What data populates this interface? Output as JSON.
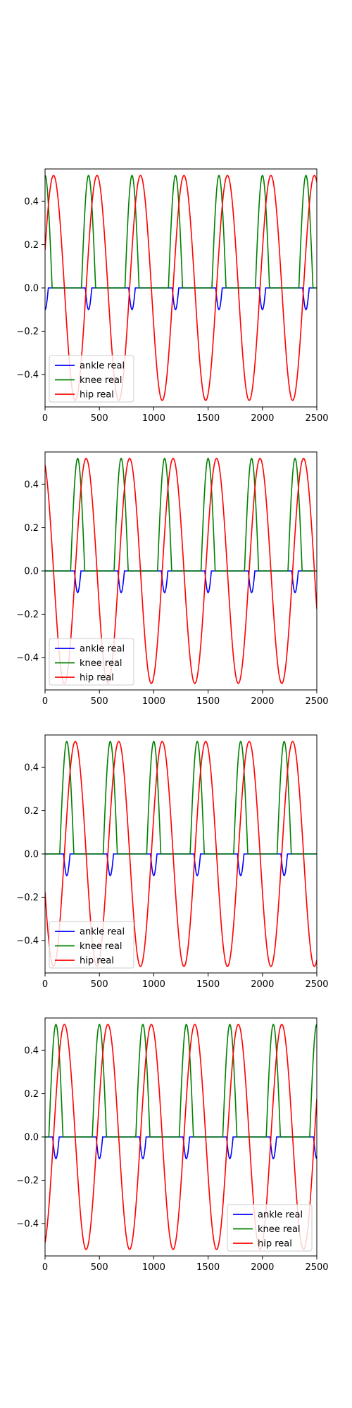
{
  "chart_data": [
    {
      "type": "line",
      "xlim": [
        0,
        2500
      ],
      "ylim": [
        -0.55,
        0.55
      ],
      "xticks": [
        0,
        500,
        1000,
        1500,
        2000,
        2500
      ],
      "yticks": [
        -0.4,
        -0.2,
        0.0,
        0.2,
        0.4
      ],
      "xtick_labels": [
        "0",
        "500",
        "1000",
        "1500",
        "2000",
        "2500"
      ],
      "ytick_labels": [
        "−0.4",
        "−0.2",
        "0.0",
        "0.2",
        "0.4"
      ],
      "grid": false,
      "legend_position": "lower-left",
      "series": [
        {
          "name": "ankle real",
          "color": "#0000ff",
          "phase": 0
        },
        {
          "name": "knee real",
          "color": "#008000",
          "phase": 0
        },
        {
          "name": "hip real",
          "color": "#ff0000",
          "phase": 0
        }
      ]
    },
    {
      "type": "line",
      "xlim": [
        0,
        2500
      ],
      "ylim": [
        -0.55,
        0.55
      ],
      "xticks": [
        0,
        500,
        1000,
        1500,
        2000,
        2500
      ],
      "yticks": [
        -0.4,
        -0.2,
        0.0,
        0.2,
        0.4
      ],
      "xtick_labels": [
        "0",
        "500",
        "1000",
        "1500",
        "2000",
        "2500"
      ],
      "ytick_labels": [
        "−0.4",
        "−0.2",
        "0.0",
        "0.2",
        "0.4"
      ],
      "grid": false,
      "legend_position": "lower-left",
      "series": [
        {
          "name": "ankle real",
          "color": "#0000ff",
          "phase": 100
        },
        {
          "name": "knee real",
          "color": "#008000",
          "phase": 100
        },
        {
          "name": "hip real",
          "color": "#ff0000",
          "phase": 100
        }
      ]
    },
    {
      "type": "line",
      "xlim": [
        0,
        2500
      ],
      "ylim": [
        -0.55,
        0.55
      ],
      "xticks": [
        0,
        500,
        1000,
        1500,
        2000,
        2500
      ],
      "yticks": [
        -0.4,
        -0.2,
        0.0,
        0.2,
        0.4
      ],
      "xtick_labels": [
        "0",
        "500",
        "1000",
        "1500",
        "2000",
        "2500"
      ],
      "ytick_labels": [
        "−0.4",
        "−0.2",
        "0.0",
        "0.2",
        "0.4"
      ],
      "grid": false,
      "legend_position": "lower-left",
      "series": [
        {
          "name": "ankle real",
          "color": "#0000ff",
          "phase": 200
        },
        {
          "name": "knee real",
          "color": "#008000",
          "phase": 200
        },
        {
          "name": "hip real",
          "color": "#ff0000",
          "phase": 200
        }
      ]
    },
    {
      "type": "line",
      "xlim": [
        0,
        2500
      ],
      "ylim": [
        -0.55,
        0.55
      ],
      "xticks": [
        0,
        500,
        1000,
        1500,
        2000,
        2500
      ],
      "yticks": [
        -0.4,
        -0.2,
        0.0,
        0.2,
        0.4
      ],
      "xtick_labels": [
        "0",
        "500",
        "1000",
        "1500",
        "2000",
        "2500"
      ],
      "ytick_labels": [
        "−0.4",
        "−0.2",
        "0.0",
        "0.2",
        "0.4"
      ],
      "grid": false,
      "legend_position": "lower-right",
      "series": [
        {
          "name": "ankle real",
          "color": "#0000ff",
          "phase": 300
        },
        {
          "name": "knee real",
          "color": "#008000",
          "phase": 300
        },
        {
          "name": "hip real",
          "color": "#ff0000",
          "phase": 300
        }
      ]
    }
  ]
}
